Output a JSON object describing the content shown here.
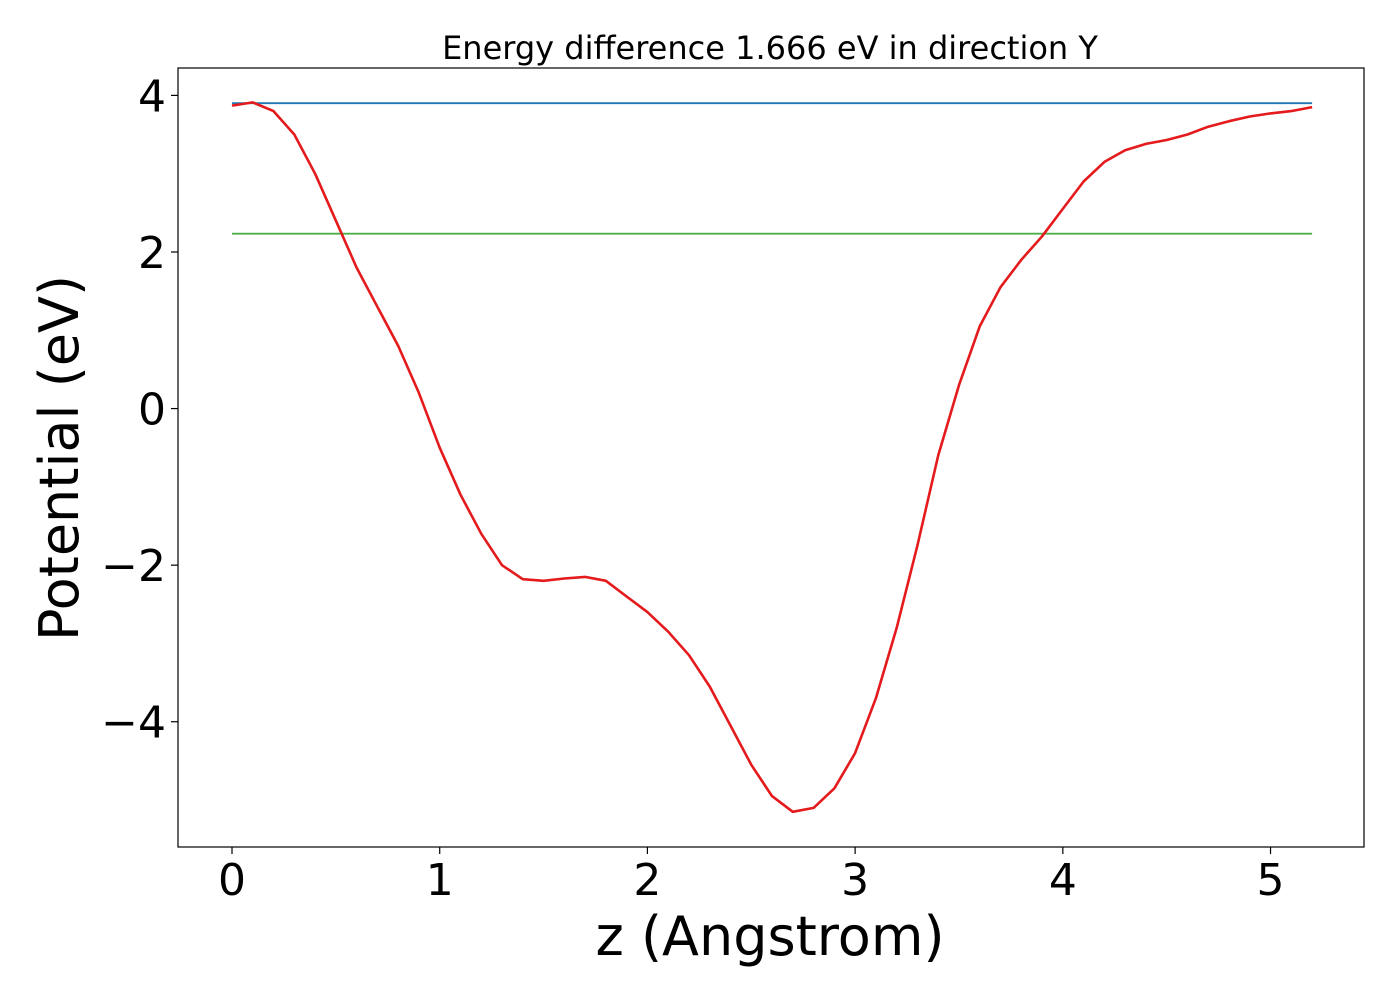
{
  "chart_data": {
    "type": "line",
    "title": "Energy difference 1.666 eV in direction Y",
    "xlabel": "z (Angstrom)",
    "ylabel": "Potential (eV)",
    "xlim": [
      -0.26,
      5.45
    ],
    "ylim": [
      -5.6,
      4.35
    ],
    "xticks": [
      0,
      1,
      2,
      3,
      4,
      5
    ],
    "xtick_labels": [
      "0",
      "1",
      "2",
      "3",
      "4",
      "5"
    ],
    "yticks": [
      4,
      2,
      0,
      -2,
      -4
    ],
    "ytick_labels": [
      "4",
      "2",
      "0",
      "−2",
      "−4"
    ],
    "grid": false,
    "series": [
      {
        "color": "#e41a1c",
        "x": [
          0,
          0.1,
          0.2,
          0.3,
          0.4,
          0.5,
          0.6,
          0.7,
          0.8,
          0.9,
          1.0,
          1.1,
          1.2,
          1.3,
          1.4,
          1.5,
          1.6,
          1.7,
          1.8,
          1.9,
          2.0,
          2.1,
          2.2,
          2.3,
          2.4,
          2.5,
          2.6,
          2.7,
          2.8,
          2.9,
          3.0,
          3.1,
          3.2,
          3.3,
          3.4,
          3.5,
          3.6,
          3.7,
          3.8,
          3.9,
          4.0,
          4.1,
          4.2,
          4.3,
          4.4,
          4.5,
          4.6,
          4.7,
          4.8,
          4.9,
          5.0,
          5.1,
          5.2
        ],
        "y": [
          3.87,
          3.91,
          3.8,
          3.5,
          3.0,
          2.4,
          1.8,
          1.3,
          0.8,
          0.2,
          -0.5,
          -1.1,
          -1.6,
          -2.0,
          -2.18,
          -2.2,
          -2.17,
          -2.15,
          -2.2,
          -2.4,
          -2.6,
          -2.85,
          -3.15,
          -3.55,
          -4.05,
          -4.55,
          -4.95,
          -5.15,
          -5.1,
          -4.85,
          -4.4,
          -3.7,
          -2.8,
          -1.75,
          -0.6,
          0.3,
          1.05,
          1.55,
          1.9,
          2.2,
          2.55,
          2.9,
          3.15,
          3.3,
          3.38,
          3.43,
          3.5,
          3.6,
          3.67,
          3.73,
          3.77,
          3.8,
          3.85
        ]
      },
      {
        "color": "#1f77b4",
        "x": [
          0,
          5.2
        ],
        "y": [
          3.9,
          3.9
        ]
      },
      {
        "color": "#4daf4a",
        "x": [
          0,
          5.2
        ],
        "y": [
          2.234,
          2.234
        ]
      }
    ]
  }
}
